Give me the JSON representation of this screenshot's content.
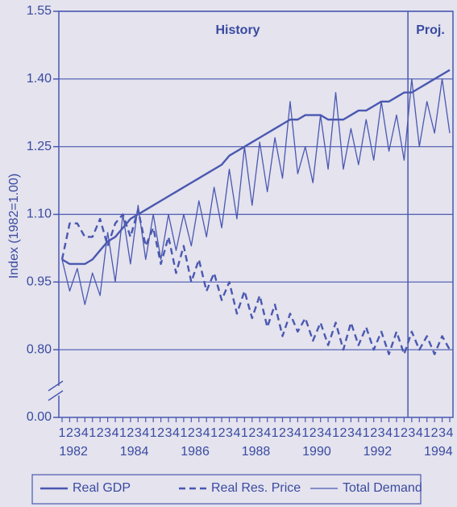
{
  "chart_data": {
    "type": "line",
    "y_label": "Index (1982=1.00)",
    "history_label": "History",
    "projection_label": "Proj.",
    "projection_from": 46,
    "categories": [
      "1",
      "2",
      "3",
      "4",
      "1",
      "2",
      "3",
      "4",
      "1",
      "2",
      "3",
      "4",
      "1",
      "2",
      "3",
      "4",
      "1",
      "2",
      "3",
      "4",
      "1",
      "2",
      "3",
      "4",
      "1",
      "2",
      "3",
      "4",
      "1",
      "2",
      "3",
      "4",
      "1",
      "2",
      "3",
      "4",
      "1",
      "2",
      "3",
      "4",
      "1",
      "2",
      "3",
      "4",
      "1",
      "2",
      "3",
      "4",
      "1",
      "2",
      "3",
      "4"
    ],
    "year_labels": [
      "1982",
      "1984",
      "1986",
      "1988",
      "1990",
      "1992",
      "1994"
    ],
    "ylim": [
      0,
      1.55
    ],
    "y_break": [
      0,
      0.65
    ],
    "yticks": [
      {
        "value": 0,
        "label": "0.00"
      },
      {
        "value": 0.8,
        "label": "0.80"
      },
      0.95,
      {
        "value": 1.1,
        "label": "1.10"
      },
      1.25,
      {
        "value": 1.4,
        "label": "1.40"
      },
      1.55
    ],
    "grid": true,
    "series": [
      {
        "name": "Real GDP",
        "color": "#4a58b0",
        "style": "solid",
        "width": 2.4,
        "values": [
          1.0,
          0.99,
          0.99,
          0.99,
          1.0,
          1.02,
          1.04,
          1.05,
          1.07,
          1.09,
          1.1,
          1.11,
          1.12,
          1.13,
          1.14,
          1.15,
          1.16,
          1.17,
          1.18,
          1.19,
          1.2,
          1.21,
          1.23,
          1.24,
          1.25,
          1.26,
          1.27,
          1.28,
          1.29,
          1.3,
          1.31,
          1.31,
          1.32,
          1.32,
          1.32,
          1.31,
          1.31,
          1.31,
          1.32,
          1.33,
          1.33,
          1.34,
          1.35,
          1.35,
          1.36,
          1.37,
          1.37,
          1.38,
          1.39,
          1.4,
          1.41,
          1.42
        ]
      },
      {
        "name": "Real Res. Price",
        "color": "#4a58b0",
        "style": "dashed",
        "width": 2.4,
        "values": [
          1.0,
          1.08,
          1.08,
          1.05,
          1.05,
          1.09,
          1.03,
          1.08,
          1.1,
          1.05,
          1.11,
          1.03,
          1.07,
          0.99,
          1.05,
          0.97,
          1.03,
          0.95,
          1.0,
          0.93,
          0.97,
          0.91,
          0.95,
          0.88,
          0.93,
          0.87,
          0.92,
          0.85,
          0.9,
          0.83,
          0.88,
          0.84,
          0.87,
          0.82,
          0.86,
          0.81,
          0.86,
          0.8,
          0.86,
          0.81,
          0.85,
          0.8,
          0.84,
          0.79,
          0.84,
          0.79,
          0.84,
          0.8,
          0.83,
          0.79,
          0.83,
          0.8
        ]
      },
      {
        "name": "Total Demand",
        "color": "#4a58b0",
        "style": "solid",
        "width": 1.3,
        "values": [
          1.0,
          0.93,
          0.98,
          0.9,
          0.97,
          0.92,
          1.06,
          0.95,
          1.1,
          0.99,
          1.12,
          1.0,
          1.1,
          1.0,
          1.1,
          1.02,
          1.1,
          1.03,
          1.13,
          1.05,
          1.16,
          1.07,
          1.2,
          1.09,
          1.25,
          1.12,
          1.26,
          1.15,
          1.27,
          1.18,
          1.35,
          1.19,
          1.25,
          1.17,
          1.32,
          1.2,
          1.37,
          1.2,
          1.29,
          1.21,
          1.31,
          1.22,
          1.35,
          1.24,
          1.32,
          1.22,
          1.4,
          1.25,
          1.35,
          1.28,
          1.4,
          1.28
        ]
      }
    ]
  }
}
